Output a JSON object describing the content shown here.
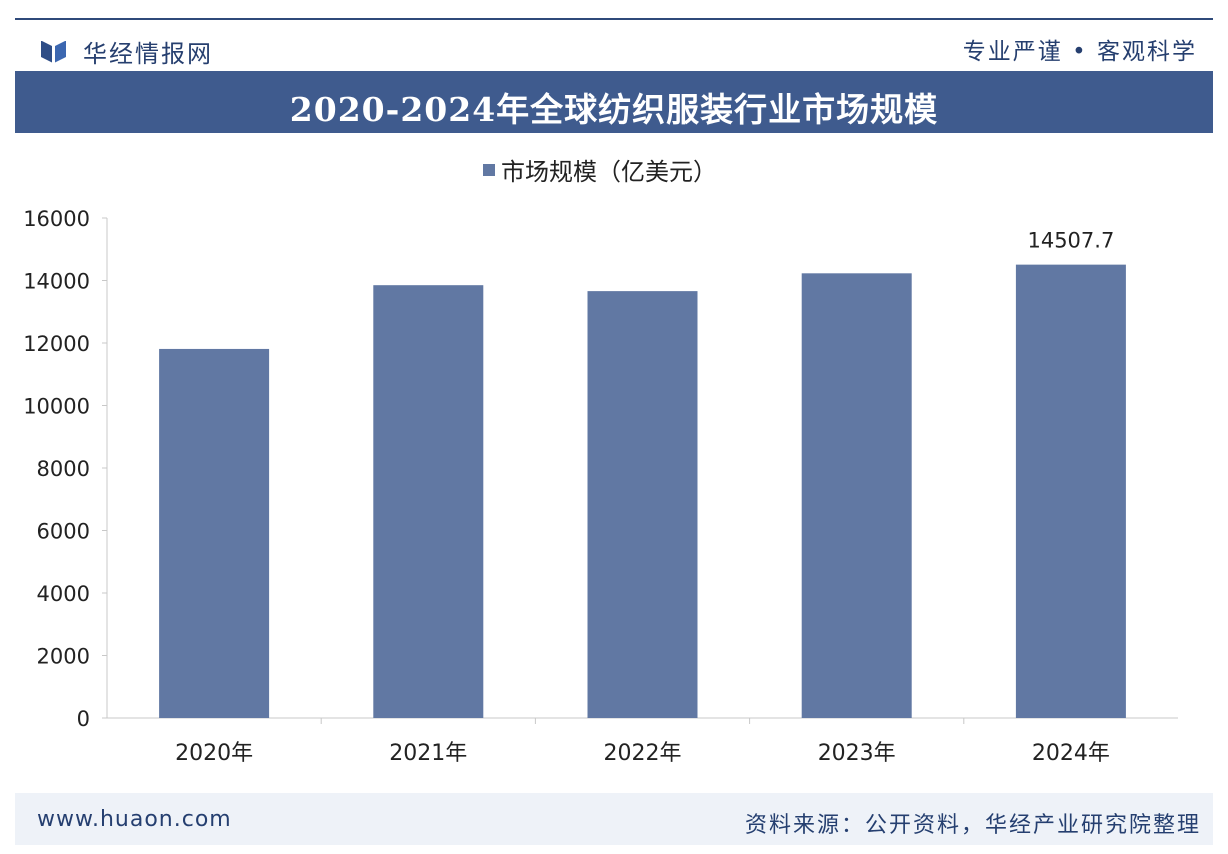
{
  "header": {
    "brand": "华经情报网",
    "slogan": "专业严谨 • 客观科学"
  },
  "footer": {
    "website": "www.huaon.com",
    "source": "资料来源：公开资料，华经产业研究院整理"
  },
  "colors": {
    "bar": "#6178a3",
    "title_bg": "#3f5b8e",
    "brand_text": "#263f6f"
  },
  "chart_data": {
    "type": "bar",
    "title": "2020-2024年全球纺织服装行业市场规模",
    "categories": [
      "2020年",
      "2021年",
      "2022年",
      "2023年",
      "2024年"
    ],
    "series": [
      {
        "name": "市场规模（亿美元）",
        "values": [
          11810,
          13850,
          13660,
          14230,
          14507.7
        ]
      }
    ],
    "data_labels": [
      null,
      null,
      null,
      null,
      "14507.7"
    ],
    "yticks": [
      "0",
      "2000",
      "4000",
      "6000",
      "8000",
      "10000",
      "12000",
      "14000",
      "16000"
    ],
    "ylim": [
      0,
      16000
    ],
    "legend_position": "top-center",
    "grid": false
  }
}
